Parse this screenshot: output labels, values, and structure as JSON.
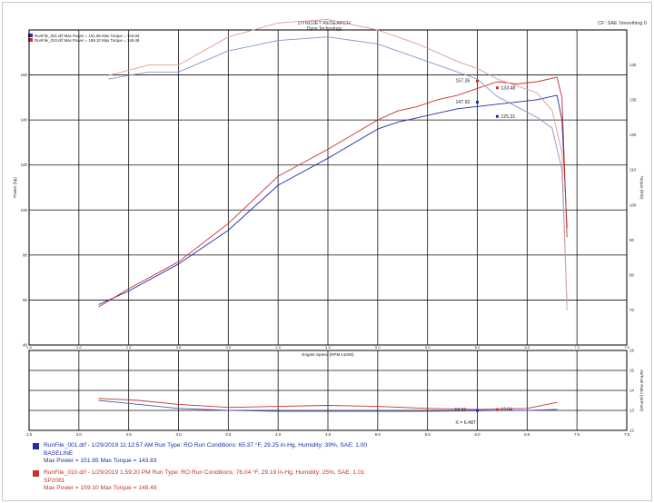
{
  "header": {
    "company": "DYNOJET RESEARCH",
    "product": "Dyno Technology",
    "smoothing": "CF: SAE Smoothing 0"
  },
  "top_legend": [
    {
      "text": "RunFile_001.drf Max Power = 151.65  Max Torque = 143.83",
      "color": "#1c2ea8"
    },
    {
      "text": "RunFile_010.drf Max Power = 159.10  Max Torque = 148.49",
      "color": "#c8322c"
    }
  ],
  "chart_data": [
    {
      "type": "line",
      "name": "power-torque",
      "xlabel": "Engine Speed (RPM x1000)",
      "ylabel_left": "Power (hp)",
      "ylabel_right": "Torque (ft-lb)",
      "xlim": [
        1.5,
        7.5
      ],
      "ylim_left": [
        40,
        180
      ],
      "ylim_right": [
        60,
        150
      ],
      "x_ticks": [
        "1.5",
        "2.0",
        "2.5",
        "3.0",
        "3.5",
        "4.0",
        "4.5",
        "5.0",
        "5.5",
        "6.0",
        "6.5",
        "7.0",
        "7.5"
      ],
      "y_ticks_left": [
        "40",
        "60",
        "80",
        "100",
        "120",
        "140",
        "160"
      ],
      "y_ticks_right": [
        "70",
        "80",
        "90",
        "100",
        "110",
        "120",
        "130",
        "140"
      ],
      "grid": true,
      "annotations": [
        "157.35",
        "147.92",
        "133.48",
        "125.31"
      ],
      "series": [
        {
          "name": "RunFile_001.drf",
          "measure": "power",
          "color": "#1c2ea8",
          "x": [
            2.2,
            2.5,
            3.0,
            3.5,
            4.0,
            4.5,
            5.0,
            5.2,
            5.4,
            5.6,
            5.8,
            6.0,
            6.2,
            6.4,
            6.6,
            6.8,
            6.85,
            6.9
          ],
          "y": [
            58,
            64,
            76,
            91,
            111,
            123,
            136,
            139,
            141,
            143,
            145,
            146,
            147,
            148,
            149,
            151,
            140,
            92
          ]
        },
        {
          "name": "RunFile_010.drf",
          "measure": "power",
          "color": "#c8322c",
          "x": [
            2.2,
            2.5,
            3.0,
            3.5,
            4.0,
            4.5,
            5.0,
            5.2,
            5.4,
            5.6,
            5.8,
            6.0,
            6.2,
            6.4,
            6.6,
            6.8,
            6.85,
            6.9
          ],
          "y": [
            57,
            65,
            77,
            94,
            115,
            127,
            140,
            144,
            146,
            149,
            151,
            154,
            157,
            156,
            157,
            159,
            150,
            88
          ]
        },
        {
          "name": "RunFile_001.drf",
          "measure": "torque",
          "color": "#8c92cc",
          "x": [
            2.3,
            2.7,
            3.0,
            3.5,
            4.0,
            4.5,
            5.0,
            5.4,
            5.8,
            6.0,
            6.2,
            6.4,
            6.6,
            6.75,
            6.85,
            6.9
          ],
          "y": [
            136,
            138,
            138,
            144,
            147,
            148,
            146,
            142,
            138,
            136,
            131,
            128,
            125,
            122,
            110,
            72
          ]
        },
        {
          "name": "RunFile_010.drf",
          "measure": "torque",
          "color": "#de9a94",
          "x": [
            2.3,
            2.7,
            3.0,
            3.5,
            4.0,
            4.5,
            5.0,
            5.4,
            5.8,
            6.0,
            6.2,
            6.4,
            6.6,
            6.75,
            6.85,
            6.9
          ],
          "y": [
            137,
            140,
            140,
            148,
            152,
            153,
            150,
            146,
            141,
            139,
            136,
            134,
            132,
            127,
            115,
            70
          ]
        }
      ]
    },
    {
      "type": "line",
      "name": "air-fuel",
      "ylabel_right": "Air/Fuel Ratio (Air/Fuel)",
      "xlim": [
        1.5,
        7.5
      ],
      "ylim": [
        12,
        16
      ],
      "y_ticks": [
        "12",
        "13",
        "14",
        "15",
        "16"
      ],
      "grid": true,
      "annotations": [
        "13.37",
        "13.04",
        "X = 6.487"
      ],
      "series": [
        {
          "name": "RunFile_001.drf",
          "color": "#4856b8",
          "x": [
            2.2,
            2.6,
            3.0,
            3.5,
            4.0,
            4.5,
            5.0,
            5.5,
            6.0,
            6.5,
            6.8
          ],
          "y": [
            13.5,
            13.3,
            13.1,
            13.0,
            12.95,
            12.95,
            12.95,
            12.95,
            12.98,
            13.0,
            13.05
          ]
        },
        {
          "name": "RunFile_010.drf",
          "color": "#c8322c",
          "x": [
            2.2,
            2.6,
            3.0,
            3.5,
            4.0,
            4.5,
            5.0,
            5.5,
            6.0,
            6.5,
            6.8
          ],
          "y": [
            13.6,
            13.5,
            13.3,
            13.15,
            13.2,
            13.25,
            13.2,
            13.1,
            13.05,
            13.1,
            13.4
          ]
        }
      ]
    }
  ],
  "runs": [
    {
      "color": "#1c2ea8",
      "line1": "RunFile_001.drf - 1/29/2019 11:12:57 AM  Run Type: RO  Run Conditions: 65.37 °F, 29.25 in-Hg,  Humidity:  39%, SAE: 1.00",
      "line2": "BASELINE",
      "line3": "Max Power = 151.65  Max Torque = 143.83"
    },
    {
      "color": "#c8322c",
      "line1": "RunFile_010.drf - 1/29/2019 1:59:20 PM  Run Type: RO  Run Conditions: 76.04 °F, 29.19 in-Hg,  Humidity:  25%, SAE: 1.01",
      "line2": "SP2081",
      "line3": "Max Power = 159.10  Max Torque = 148.49"
    }
  ]
}
